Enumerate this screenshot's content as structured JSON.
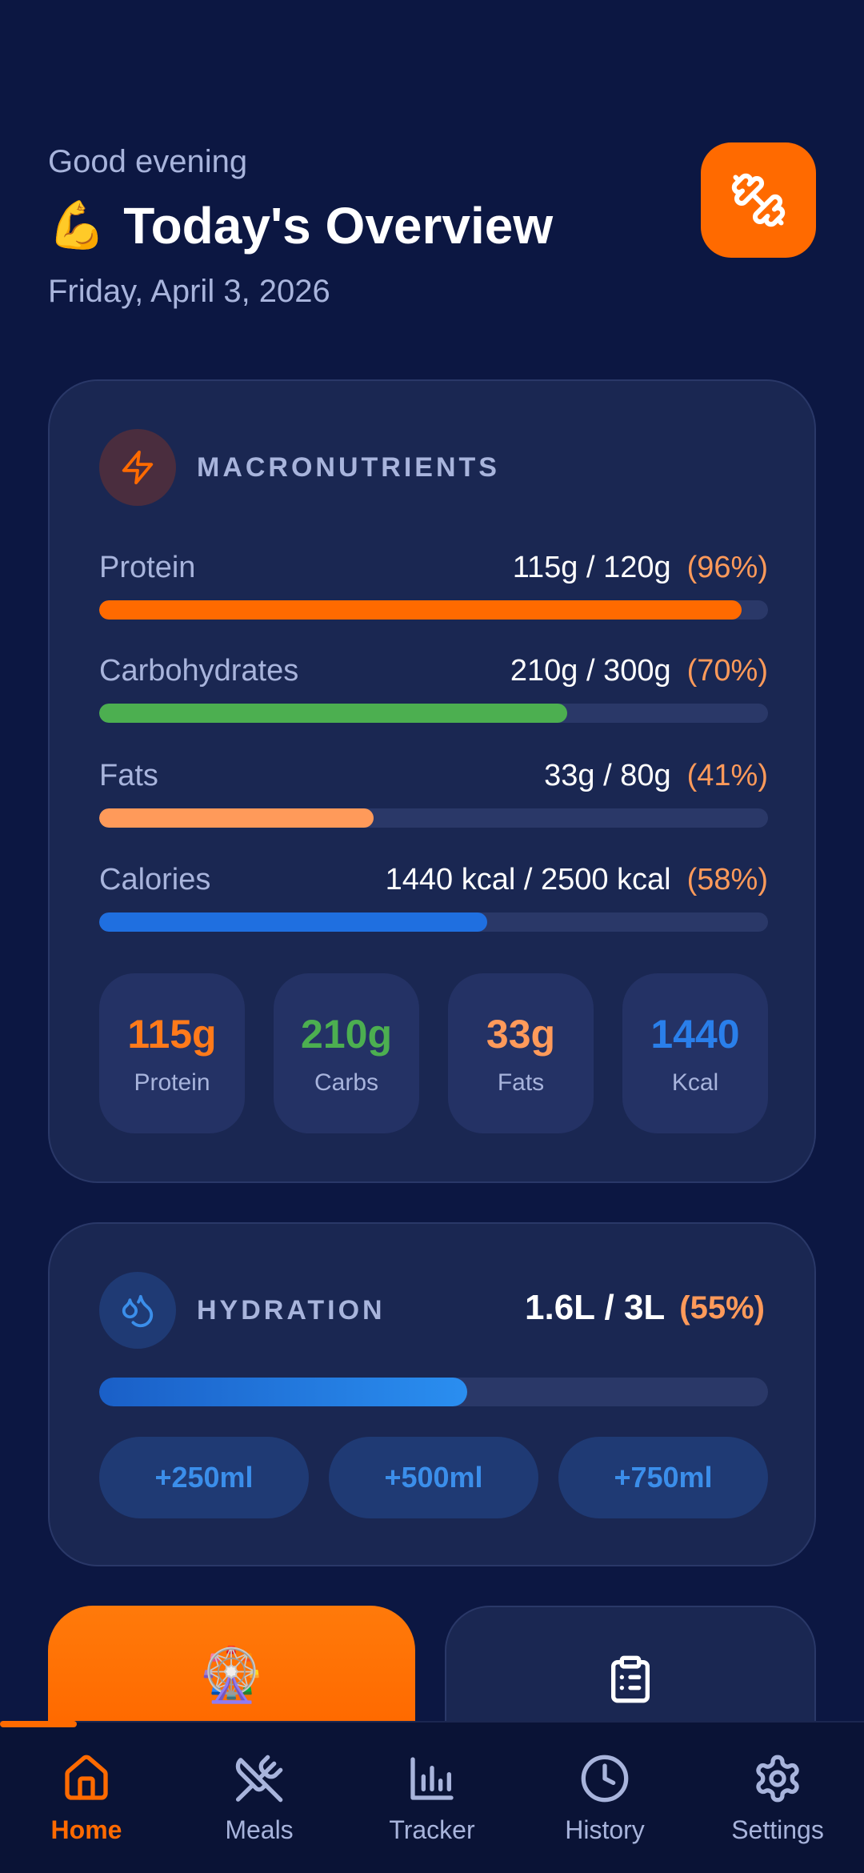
{
  "header": {
    "greeting": "Good evening",
    "title_emoji": "💪",
    "title": "Today's Overview",
    "date": "Friday, April 3, 2026",
    "action_icon": "dumbbell-icon"
  },
  "macros": {
    "section_label": "MACRONUTRIENTS",
    "icon": "lightning-icon",
    "rows": [
      {
        "name": "Protein",
        "value": "115g / 120g",
        "pct": "(96%)",
        "progress": 0.96,
        "color": "#ff6a00"
      },
      {
        "name": "Carbohydrates",
        "value": "210g / 300g",
        "pct": "(70%)",
        "progress": 0.7,
        "color": "#4caf50"
      },
      {
        "name": "Fats",
        "value": "33g / 80g",
        "pct": "(41%)",
        "progress": 0.41,
        "color": "#ff9a5a"
      },
      {
        "name": "Calories",
        "value": "1440 kcal / 2500 kcal",
        "pct": "(58%)",
        "progress": 0.58,
        "color": "#1f6fe0"
      }
    ],
    "summary": [
      {
        "value": "115g",
        "label": "Protein",
        "color": "#ff7a1a"
      },
      {
        "value": "210g",
        "label": "Carbs",
        "color": "#4caf50"
      },
      {
        "value": "33g",
        "label": "Fats",
        "color": "#ff9a5a"
      },
      {
        "value": "1440",
        "label": "Kcal",
        "color": "#2a7fea"
      }
    ]
  },
  "hydration": {
    "section_label": "HYDRATION",
    "icon": "water-drops-icon",
    "value": "1.6L / 3L",
    "pct": "(55%)",
    "progress": 0.55,
    "buttons": [
      "+250ml",
      "+500ml",
      "+750ml"
    ]
  },
  "quick_actions": {
    "left_emoji": "🎡",
    "right_icon": "clipboard-icon"
  },
  "nav": {
    "items": [
      {
        "label": "Home",
        "icon": "home-icon",
        "active": true
      },
      {
        "label": "Meals",
        "icon": "utensils-icon",
        "active": false
      },
      {
        "label": "Tracker",
        "icon": "bar-chart-icon",
        "active": false
      },
      {
        "label": "History",
        "icon": "clock-icon",
        "active": false
      },
      {
        "label": "Settings",
        "icon": "gear-icon",
        "active": false
      }
    ]
  }
}
